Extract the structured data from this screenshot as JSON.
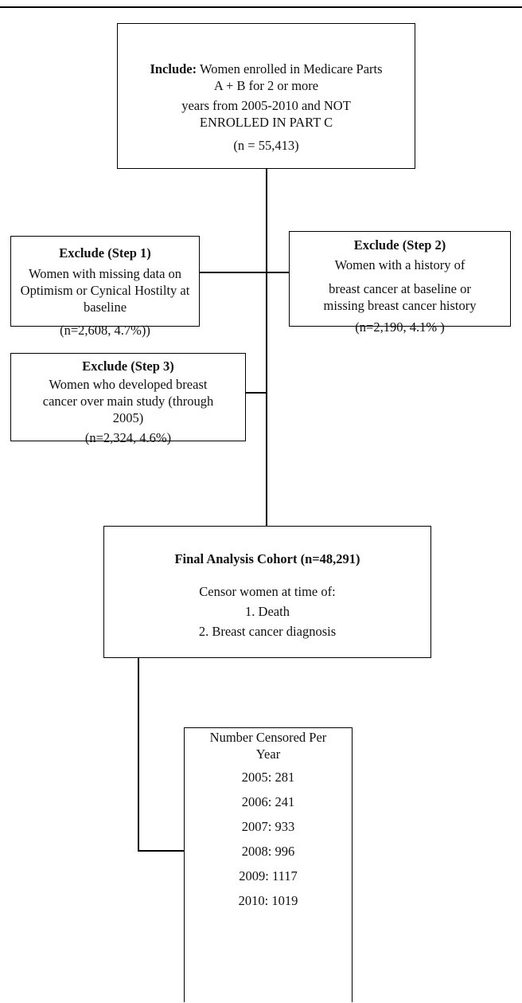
{
  "include": {
    "label": "Include:",
    "text_a": " Women enrolled in Medicare Parts",
    "text_b": "A + B for 2 or more",
    "text_c": "years from 2005-2010 and NOT",
    "text_d": "ENROLLED IN PART C",
    "count": "(n =  55,413)"
  },
  "exclude1": {
    "title": "Exclude (Step 1)",
    "line1": "Women with missing data on",
    "line2": "Optimism or Cynical Hostilty at",
    "line3": "baseline",
    "count": "(n=2,608, 4.7%))"
  },
  "exclude2": {
    "title": "Exclude (Step 2)",
    "line1": "Women with a history of",
    "line2": "breast cancer at baseline or",
    "line3": "missing breast cancer history",
    "count": "(n=2,190, 4.1% )"
  },
  "exclude3": {
    "title": "Exclude (Step 3)",
    "line1": "Women who developed breast",
    "line2": "cancer over main study (through",
    "line3": "2005)",
    "count": "(n=2,324, 4.6%)"
  },
  "final": {
    "title": "Final Analysis Cohort (n=48,291)",
    "censor_intro": "Censor women at time of:",
    "item1": "1. Death",
    "item2": "2. Breast cancer diagnosis"
  },
  "censored": {
    "title_line1": "Number Censored Per",
    "title_line2": "Year",
    "years": [
      "2005: 281",
      "2006: 241",
      "2007: 933",
      "2008: 996",
      "2009: 1117",
      "2010: 1019"
    ]
  }
}
